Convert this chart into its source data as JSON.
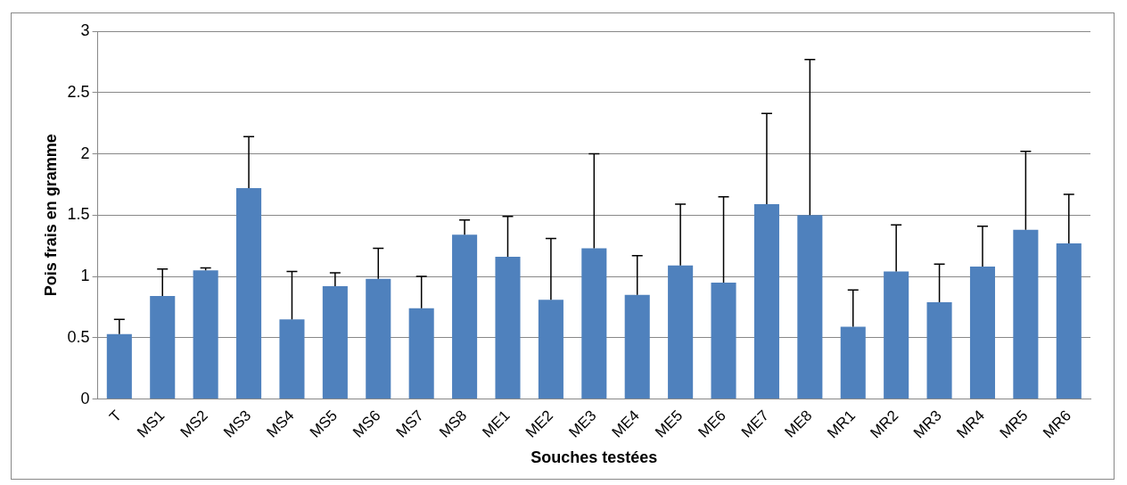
{
  "chart_data": {
    "type": "bar",
    "xlabel": "Souches testées",
    "ylabel": "Pois frais en gramme",
    "categories": [
      "T",
      "MS1",
      "MS2",
      "MS3",
      "MS4",
      "MS5",
      "MS6",
      "MS7",
      "MS8",
      "ME1",
      "ME2",
      "ME3",
      "ME4",
      "ME5",
      "ME6",
      "ME7",
      "ME8",
      "MR1",
      "MR2",
      "MR3",
      "MR4",
      "MR5",
      "MR6"
    ],
    "values": [
      0.53,
      0.84,
      1.05,
      1.72,
      0.65,
      0.92,
      0.98,
      0.74,
      1.34,
      1.16,
      0.81,
      1.23,
      0.85,
      1.09,
      0.95,
      1.59,
      1.5,
      0.59,
      1.04,
      0.79,
      1.08,
      1.38,
      1.27
    ],
    "errors": [
      [
        0.53,
        0.65
      ],
      [
        0.84,
        1.06
      ],
      [
        1.05,
        1.07
      ],
      [
        1.72,
        2.14
      ],
      [
        0.65,
        1.04
      ],
      [
        0.92,
        1.03
      ],
      [
        0.98,
        1.23
      ],
      [
        0.74,
        1.0
      ],
      [
        1.34,
        1.46
      ],
      [
        1.16,
        1.49
      ],
      [
        0.81,
        1.31
      ],
      [
        1.23,
        2.0
      ],
      [
        0.85,
        1.17
      ],
      [
        1.09,
        1.59
      ],
      [
        0.95,
        1.65
      ],
      [
        1.59,
        2.33
      ],
      [
        1.5,
        2.77
      ],
      [
        0.59,
        0.89
      ],
      [
        1.04,
        1.42
      ],
      [
        0.79,
        1.1
      ],
      [
        1.08,
        1.41
      ],
      [
        1.38,
        2.02
      ],
      [
        1.27,
        1.67
      ]
    ],
    "color": "#4f81bd",
    "ylim": [
      0,
      3
    ],
    "yticks": [
      0,
      0.5,
      1,
      1.5,
      2,
      2.5,
      3
    ],
    "grid": "y",
    "legend": false
  }
}
